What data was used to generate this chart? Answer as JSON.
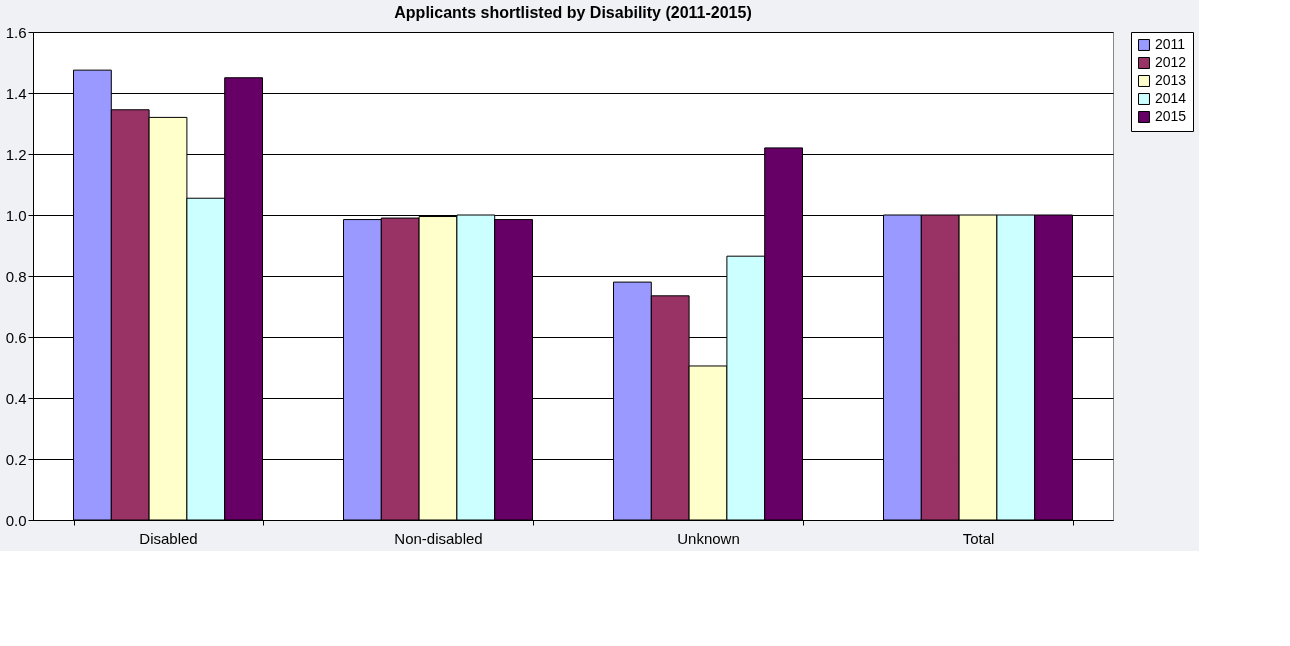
{
  "chart_data": {
    "type": "bar",
    "title": "Applicants shortlisted by Disability (2011-2015)",
    "categories": [
      "Disabled",
      "Non-disabled",
      "Unknown",
      "Total"
    ],
    "series": [
      {
        "name": "2011",
        "color": "#9999ff",
        "values": [
          1.475,
          0.985,
          0.78,
          1.0
        ]
      },
      {
        "name": "2012",
        "color": "#993366",
        "values": [
          1.345,
          0.99,
          0.735,
          1.0
        ]
      },
      {
        "name": "2013",
        "color": "#ffffcc",
        "values": [
          1.32,
          0.995,
          0.505,
          1.0
        ]
      },
      {
        "name": "2014",
        "color": "#ccffff",
        "values": [
          1.055,
          1.0,
          0.865,
          1.0
        ]
      },
      {
        "name": "2015",
        "color": "#660066",
        "values": [
          1.45,
          0.985,
          1.22,
          1.0
        ]
      }
    ],
    "ylim": [
      0,
      1.6
    ],
    "yticks": [
      {
        "value": 0,
        "label": "0.0"
      },
      {
        "value": 0.2,
        "label": "0.2"
      },
      {
        "value": 0.4,
        "label": "0.4"
      },
      {
        "value": 0.6,
        "label": "0.6"
      },
      {
        "value": 0.8,
        "label": "0.8"
      },
      {
        "value": 1.0,
        "label": "1.0"
      },
      {
        "value": 1.2,
        "label": "1.2"
      },
      {
        "value": 1.4,
        "label": "1.4"
      },
      {
        "value": 1.6,
        "label": "1.6"
      }
    ],
    "grid": "y",
    "legend": "right"
  }
}
